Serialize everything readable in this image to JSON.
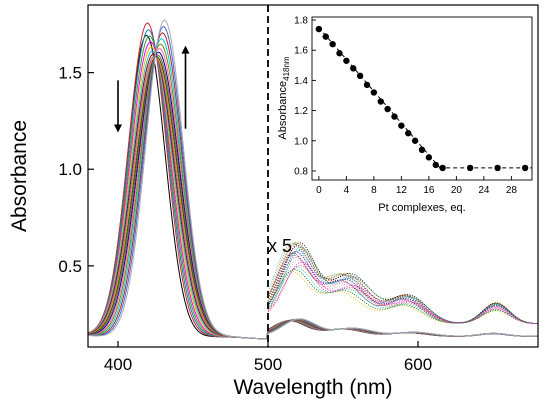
{
  "chart_data": [
    {
      "type": "line",
      "xlabel": "Wavelength (nm)",
      "ylabel": "Absorbance",
      "xlim": [
        380,
        680
      ],
      "ylim": [
        0.08,
        1.85
      ],
      "x_ticks": [
        400,
        500,
        600
      ],
      "y_ticks": [
        0.5,
        1.0,
        1.5
      ],
      "x_tick_labels": [
        "400",
        "500",
        "600"
      ],
      "y_tick_labels": [
        "0.5",
        "1.0",
        "1.5"
      ],
      "divider_x": 500,
      "magnification_label": "x 5",
      "series_count": 19,
      "soret_peak_start": {
        "x": 419,
        "y": 1.68
      },
      "soret_peak_end": {
        "x": 431,
        "y": 1.76
      },
      "arrows": [
        {
          "x": 400,
          "from_y": 1.46,
          "to_y": 1.19,
          "direction": "down"
        },
        {
          "x": 445,
          "from_y": 1.21,
          "to_y": 1.64,
          "direction": "up"
        }
      ],
      "grid": false
    },
    {
      "type": "scatter",
      "xlabel": "Pt complexes, eq.",
      "ylabel": "Absorbance",
      "ylabel_sub": "418nm",
      "xlim": [
        -1,
        31
      ],
      "ylim": [
        0.74,
        1.82
      ],
      "x_ticks": [
        0,
        4,
        8,
        12,
        16,
        20,
        24,
        28
      ],
      "y_ticks": [
        0.8,
        1.0,
        1.2,
        1.4,
        1.6,
        1.8
      ],
      "x_tick_labels": [
        "0",
        "4",
        "8",
        "12",
        "16",
        "20",
        "24",
        "28"
      ],
      "y_tick_labels": [
        "0.8",
        "1.0",
        "1.2",
        "1.4",
        "1.6",
        "1.8"
      ],
      "x": [
        0,
        1,
        2,
        3,
        4,
        5,
        6,
        7,
        8,
        9,
        10,
        11,
        12,
        13,
        14,
        15,
        16,
        17,
        18,
        22,
        26,
        30
      ],
      "y": [
        1.74,
        1.69,
        1.64,
        1.58,
        1.53,
        1.48,
        1.43,
        1.37,
        1.32,
        1.26,
        1.21,
        1.16,
        1.1,
        1.05,
        1.0,
        0.94,
        0.89,
        0.84,
        0.82,
        0.82,
        0.82,
        0.82
      ],
      "fit_lines": [
        {
          "x": [
            0,
            18
          ],
          "y": [
            1.75,
            0.8
          ]
        },
        {
          "x": [
            17.5,
            31
          ],
          "y": [
            0.82,
            0.82
          ]
        }
      ],
      "grid": false
    }
  ]
}
